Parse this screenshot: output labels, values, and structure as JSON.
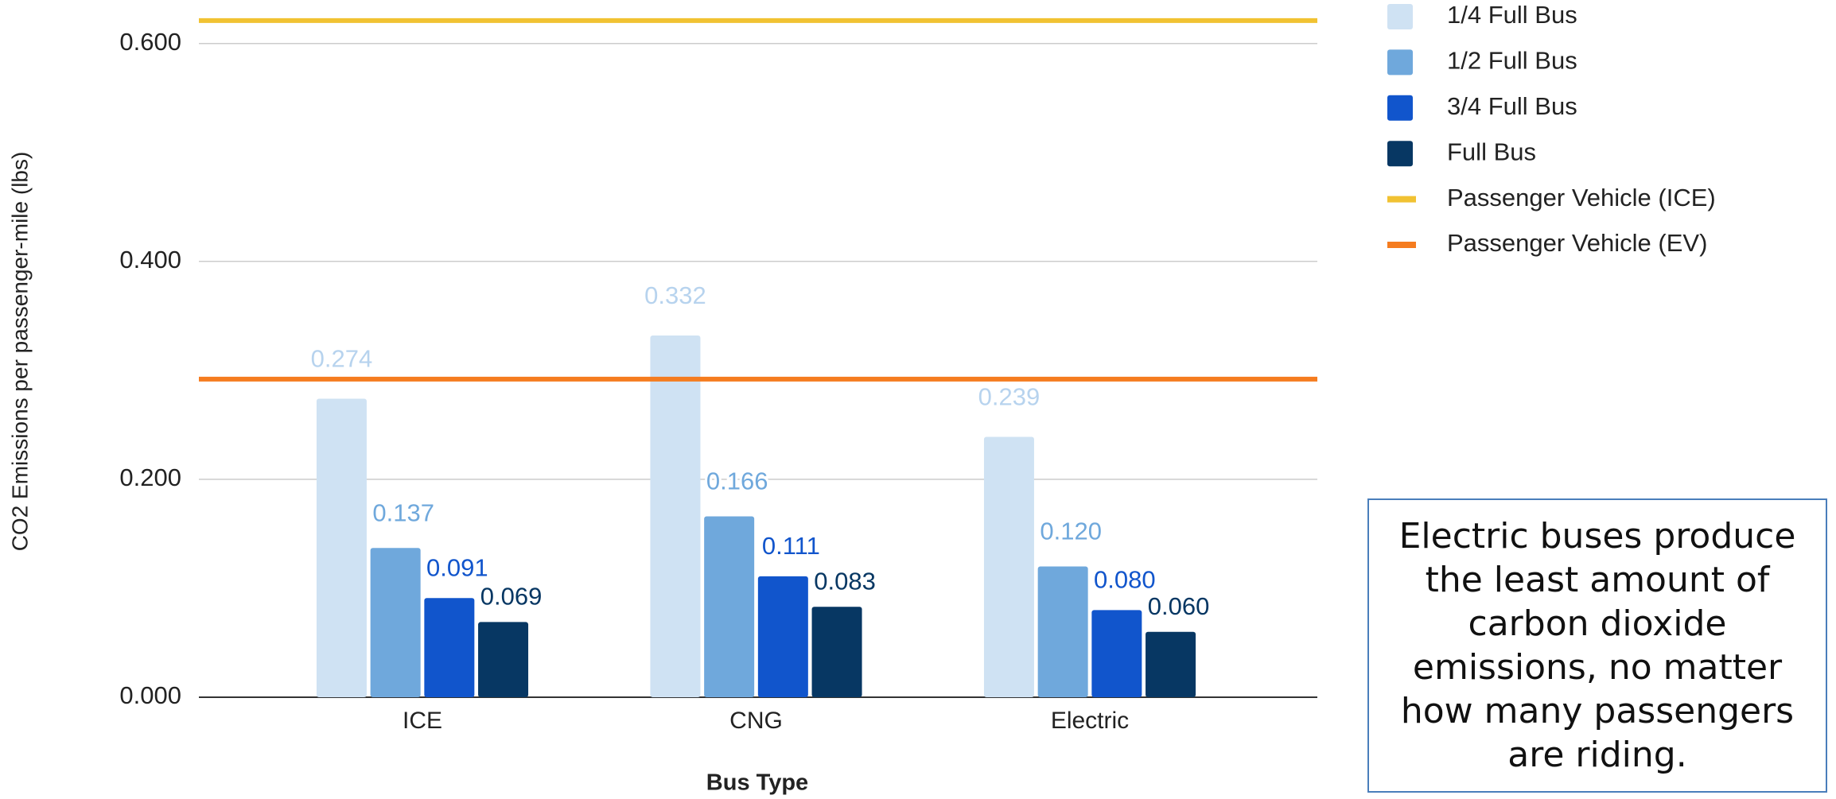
{
  "chart_data": {
    "type": "bar",
    "x_label": "Bus Type",
    "y_label": "CO2 Emissions per passenger-mile (lbs)",
    "categories": [
      "ICE",
      "CNG",
      "Electric"
    ],
    "series": [
      {
        "name": "1/4 Full Bus",
        "color": "#cfe2f3",
        "values": [
          0.274,
          0.332,
          0.239
        ],
        "value_labels": [
          "0.274",
          "0.332",
          "0.239"
        ]
      },
      {
        "name": "1/2 Full Bus",
        "color": "#6fa8dc",
        "values": [
          0.137,
          0.166,
          0.12
        ],
        "value_labels": [
          "0.137",
          "0.166",
          "0.120"
        ]
      },
      {
        "name": "3/4 Full Bus",
        "color": "#1155cc",
        "values": [
          0.091,
          0.111,
          0.08
        ],
        "value_labels": [
          "0.091",
          "0.111",
          "0.080"
        ]
      },
      {
        "name": "Full Bus",
        "color": "#073763",
        "values": [
          0.069,
          0.083,
          0.06
        ],
        "value_labels": [
          "0.069",
          "0.083",
          "0.060"
        ]
      }
    ],
    "reference_lines": [
      {
        "name": "Passenger Vehicle (ICE)",
        "color": "#f1c232",
        "value": 0.621
      },
      {
        "name": "Passenger Vehicle (EV)",
        "color": "#f57c1f",
        "value": 0.292
      }
    ],
    "ylim": [
      0,
      0.63
    ],
    "yticks": [
      {
        "value": 0,
        "label": "0.000"
      },
      {
        "value": 0.2,
        "label": "0.200"
      },
      {
        "value": 0.4,
        "label": "0.400"
      },
      {
        "value": 0.6,
        "label": "0.600"
      }
    ],
    "grid": true,
    "legend": "top-right",
    "annotation": "Electric buses produce the least amount of carbon dioxide emissions, no matter how many passengers are riding."
  }
}
